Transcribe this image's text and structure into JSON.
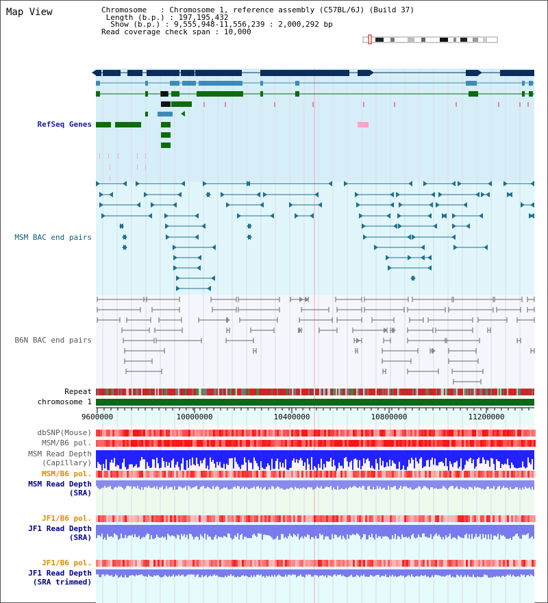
{
  "title": "Map View",
  "info": {
    "chromosome_label": "Chromosome",
    "chromosome_value": "Chromosome 1, reference assembly (C57BL/6J) (Build 37)",
    "length_label": "Length (b.p.)",
    "length_value": "197,195,432",
    "show_label": "Show (b.p.)",
    "show_value": "9,555,948-11,556,239 : 2,000,292 bp",
    "coverage_label": "Read coverage check span",
    "coverage_value": "10,000"
  },
  "tracks": {
    "refseq": "RefSeq Genes",
    "msm_bac": "MSM BAC end pairs",
    "b6n_bac": "B6N BAC end pairs",
    "repeat": "Repeat",
    "chromosome": "chromosome 1",
    "dbsnp": "dbSNP(Mouse)",
    "msm_b6_pol": "MSM/B6 pol.",
    "msm_read_depth_cap_1": "MSM Read Depth",
    "msm_read_depth_cap_2": "(Capillary)",
    "msm_b6_pol_2": "MSM/B6 pol.",
    "msm_read_depth_sra_1": "MSM Read Depth",
    "msm_read_depth_sra_2": "(SRA)",
    "jf1_b6_pol": "JF1/B6 pol.",
    "jf1_read_depth_sra_1": "JF1 Read Depth",
    "jf1_read_depth_sra_2": "(SRA)",
    "jf1_b6_pol_2": "JF1/B6 pol.",
    "jf1_read_depth_trim_1": "JF1 Read Depth",
    "jf1_read_depth_trim_2": "(SRA trimmed)"
  },
  "axis": {
    "ticks": [
      "9600000",
      "10000000",
      "10400000",
      "10800000",
      "11200000"
    ]
  },
  "colors": {
    "refseq_dark": "#0b2d5c",
    "refseq_mid": "#3b8bb5",
    "refseq_green": "#0e6b0e",
    "msm_line": "#1f6f8f",
    "b6n_line": "#666666",
    "depth_blue": "#2222ff",
    "depth_light": "#7a7aee"
  }
}
